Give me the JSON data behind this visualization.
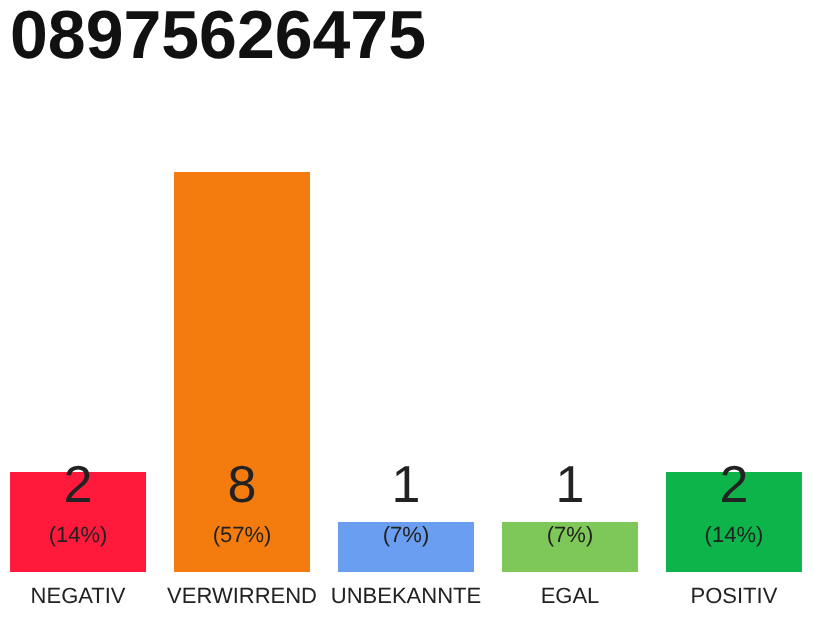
{
  "chart_data": {
    "type": "bar",
    "title": "08975626475",
    "categories": [
      "NEGATIV",
      "VERWIRREND",
      "UNBEKANNTE",
      "EGAL",
      "POSITIV"
    ],
    "values": [
      2,
      8,
      1,
      1,
      2
    ],
    "colors": [
      "#ff1a3c",
      "#f47c0f",
      "#6a9ef0",
      "#7ec85a",
      "#0cb44a"
    ],
    "data_labels": true,
    "annotations": [
      "(14%)",
      "(57%)",
      "(7%)",
      "(7%)",
      "(14%)"
    ],
    "grid": false
  }
}
